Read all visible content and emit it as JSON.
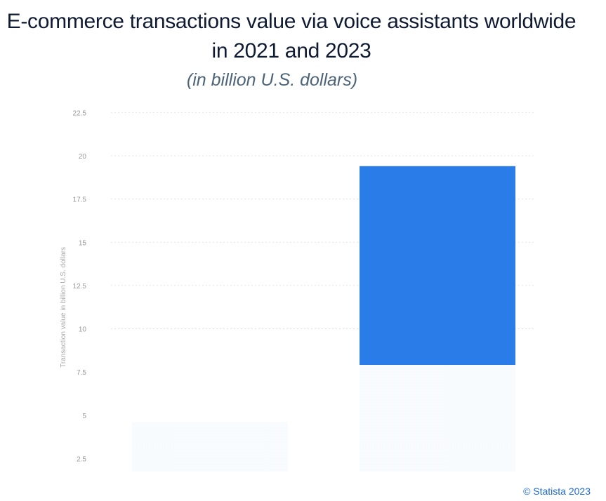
{
  "chart_data": {
    "type": "bar",
    "title": "E-commerce transactions value via voice assistants worldwide in 2021 and 2023",
    "subtitle": "(in billion U.S. dollars)",
    "ylabel": "Transaction value in billion U.S. dollars",
    "xlabel": "",
    "ylim": [
      0,
      22.5
    ],
    "yticks": [
      "2.5",
      "5",
      "7.5",
      "10",
      "12.5",
      "15",
      "17.5",
      "20",
      "22.5"
    ],
    "values": [
      4.6,
      19.4
    ],
    "grid": true,
    "bar_color": "#2a7de8"
  },
  "credit": "© Statista 2023"
}
